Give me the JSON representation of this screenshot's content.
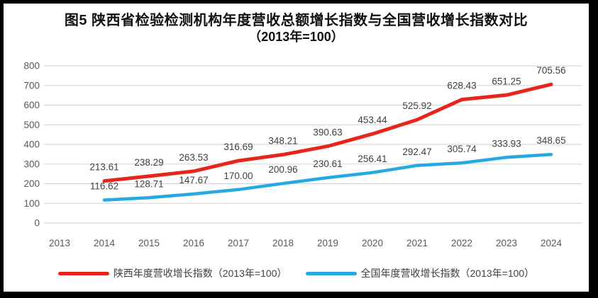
{
  "figure": {
    "border_color": "#000000",
    "background": "#ffffff"
  },
  "chart_data": {
    "type": "line",
    "title": "图5  陕西省检验检测机构年度营收总额增长指数与全国营收增长指数对比",
    "subtitle": "（2013年=100）",
    "categories": [
      "2013",
      "2014",
      "2015",
      "2016",
      "2017",
      "2018",
      "2019",
      "2020",
      "2021",
      "2022",
      "2023",
      "2024"
    ],
    "ylim": [
      0,
      800
    ],
    "yticks": [
      0,
      100,
      200,
      300,
      400,
      500,
      600,
      700,
      800
    ],
    "grid": true,
    "legend_position": "bottom",
    "axis_color": "#595959",
    "gridline_color": "#d6d6d6",
    "label_color": "#404040",
    "series": [
      {
        "name": "陕西年度营收增长指数（2013年=100）",
        "color": "#e8251d",
        "values": [
          null,
          213.61,
          238.29,
          263.53,
          316.69,
          348.21,
          390.63,
          453.44,
          525.92,
          628.43,
          651.25,
          705.56
        ],
        "labels": [
          null,
          "213.61",
          "238.29",
          "263.53",
          "316.69",
          "348.21",
          "390.63",
          "453.44",
          "525.92",
          "628.43",
          "651.25",
          "705.56"
        ]
      },
      {
        "name": "全国年度营收增长指数（2013年=100）",
        "color": "#25a9e0",
        "values": [
          null,
          116.62,
          128.71,
          147.67,
          170.0,
          200.96,
          230.61,
          256.41,
          292.47,
          305.74,
          333.93,
          348.65
        ],
        "labels": [
          null,
          "116.62",
          "128.71",
          "147.67",
          "170.00",
          "200.96",
          "230.61",
          "256.41",
          "292.47",
          "305.74",
          "333.93",
          "348.65"
        ]
      }
    ]
  }
}
